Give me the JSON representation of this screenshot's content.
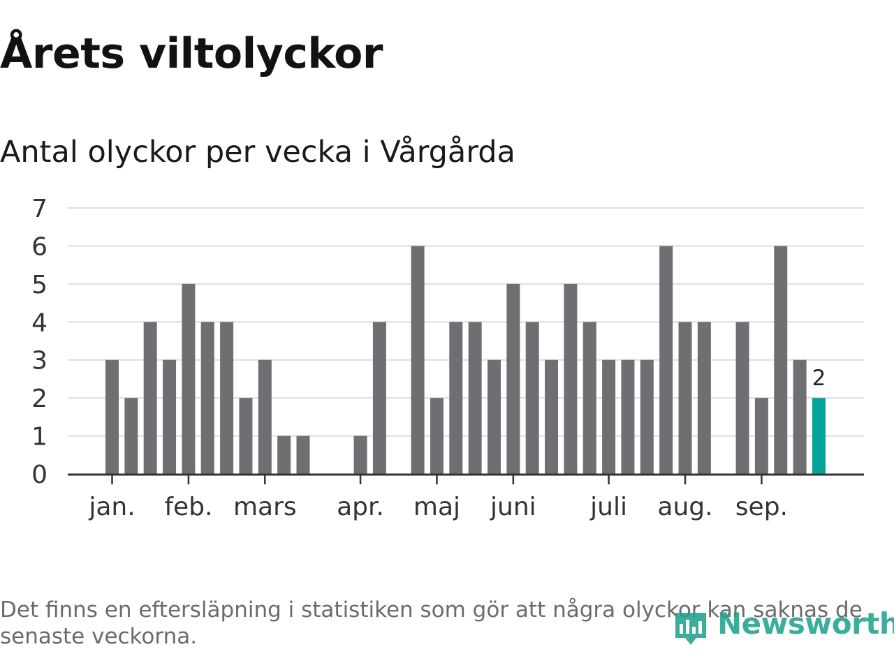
{
  "title": "Årets viltolyckor",
  "subtitle": "Antal olyckor per vecka i Vårgårda",
  "footnote": "Det finns en eftersläpning i statistiken som gör att några olyckor kan saknas de senaste veckorna.",
  "logo_text": "Newsworthy",
  "colors": {
    "bar": "#6f6e73",
    "highlight": "#05a49a",
    "grid": "#dddddd",
    "axis": "#333333",
    "logo": "#1fa38d"
  },
  "chart_data": {
    "type": "bar",
    "title": "Antal olyckor per vecka i Vårgårda",
    "xlabel": "",
    "ylabel": "",
    "ylim": [
      0,
      7
    ],
    "yticks": [
      0,
      1,
      2,
      3,
      4,
      5,
      6,
      7
    ],
    "grid": true,
    "month_labels": [
      {
        "label": "jan.",
        "week": 1
      },
      {
        "label": "feb.",
        "week": 5
      },
      {
        "label": "mars",
        "week": 9
      },
      {
        "label": "apr.",
        "week": 14
      },
      {
        "label": "maj",
        "week": 18
      },
      {
        "label": "juni",
        "week": 22
      },
      {
        "label": "juli",
        "week": 27
      },
      {
        "label": "aug.",
        "week": 31
      },
      {
        "label": "sep.",
        "week": 35
      }
    ],
    "weeks": [
      1,
      2,
      3,
      4,
      5,
      6,
      7,
      8,
      9,
      10,
      11,
      12,
      13,
      14,
      15,
      16,
      17,
      18,
      19,
      20,
      21,
      22,
      23,
      24,
      25,
      26,
      27,
      28,
      29,
      30,
      31,
      32,
      33,
      34,
      35,
      36,
      37,
      38
    ],
    "values": [
      3,
      2,
      4,
      3,
      5,
      4,
      4,
      2,
      3,
      1,
      1,
      0,
      0,
      1,
      4,
      0,
      6,
      2,
      4,
      4,
      3,
      5,
      4,
      3,
      5,
      4,
      3,
      3,
      3,
      6,
      4,
      4,
      0,
      4,
      2,
      6,
      3,
      2
    ],
    "highlight_index": 37,
    "highlight_label": "2"
  }
}
